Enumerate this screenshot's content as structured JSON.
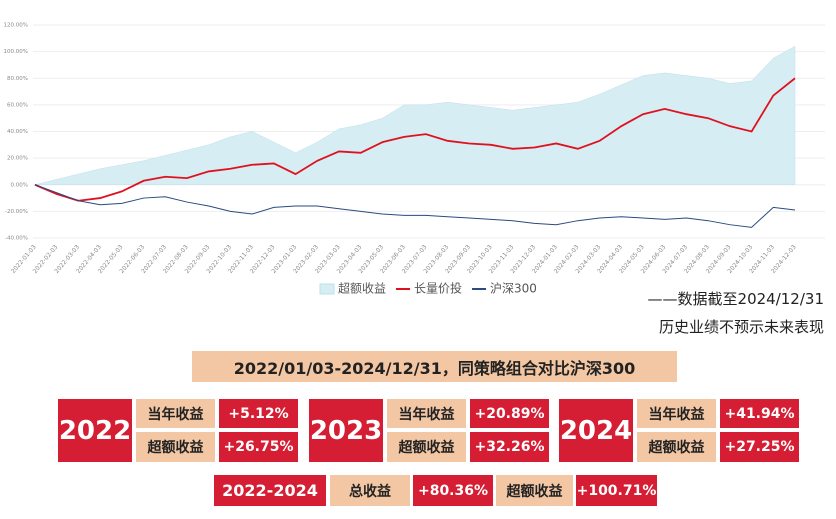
{
  "chart_data": {
    "type": "line",
    "categories": [
      "2022-01-03",
      "2022-02-03",
      "2022-03-03",
      "2022-04-03",
      "2022-05-03",
      "2022-06-03",
      "2022-07-03",
      "2022-08-03",
      "2022-09-03",
      "2022-10-03",
      "2022-11-03",
      "2022-12-03",
      "2023-01-03",
      "2023-02-03",
      "2023-03-03",
      "2023-04-03",
      "2023-05-03",
      "2023-06-03",
      "2023-07-03",
      "2023-08-03",
      "2023-09-03",
      "2023-10-03",
      "2023-11-03",
      "2023-12-03",
      "2024-01-03",
      "2024-02-03",
      "2024-03-03",
      "2024-04-03",
      "2024-05-03",
      "2024-06-03",
      "2024-07-03",
      "2024-08-03",
      "2024-09-03",
      "2024-10-03",
      "2024-11-03",
      "2024-12-03"
    ],
    "series": [
      {
        "name": "超额收益",
        "kind": "area",
        "color": "#d6edf4",
        "values": [
          0,
          4,
          8,
          12,
          15,
          18,
          22,
          26,
          30,
          36,
          40,
          32,
          24,
          32,
          42,
          45,
          50,
          60,
          60,
          62,
          60,
          58,
          56,
          58,
          60,
          62,
          68,
          75,
          82,
          84,
          82,
          80,
          76,
          78,
          95,
          104
        ]
      },
      {
        "name": "长量价投",
        "kind": "line",
        "color": "#e0111f",
        "values": [
          0,
          -7,
          -12,
          -10,
          -5,
          3,
          6,
          5,
          10,
          12,
          15,
          16,
          8,
          18,
          25,
          24,
          32,
          36,
          38,
          33,
          31,
          30,
          27,
          28,
          31,
          27,
          33,
          44,
          53,
          57,
          53,
          50,
          44,
          40,
          67,
          80
        ]
      },
      {
        "name": "沪深300",
        "kind": "line",
        "color": "#2b4a7e",
        "values": [
          0,
          -6,
          -12,
          -15,
          -14,
          -10,
          -9,
          -13,
          -16,
          -20,
          -22,
          -17,
          -16,
          -16,
          -18,
          -20,
          -22,
          -23,
          -23,
          -24,
          -25,
          -26,
          -27,
          -29,
          -30,
          -27,
          -25,
          -24,
          -25,
          -26,
          -25,
          -27,
          -30,
          -32,
          -17,
          -19
        ]
      }
    ],
    "ylim": [
      -40,
      120
    ],
    "yticks": [
      {
        "value": -40,
        "label": "-40.00%"
      },
      {
        "value": -20,
        "label": "-20.00%"
      },
      {
        "value": 0,
        "label": "0.00%"
      },
      {
        "value": 20,
        "label": "20.00%"
      },
      {
        "value": 40,
        "label": "40.00%"
      },
      {
        "value": 60,
        "label": "60.00%"
      },
      {
        "value": 80,
        "label": "80.00%"
      },
      {
        "value": 100,
        "label": "100.00%"
      },
      {
        "value": 120,
        "label": "120.00%"
      }
    ],
    "grid": true,
    "legend": "bottom"
  },
  "notes": [
    "——数据截至2024/12/31",
    "历史业绩不预示未来表现"
  ],
  "banner": "2022/01/03-2024/12/31，同策略组合对比沪深300",
  "years": [
    {
      "year": "2022",
      "label1": "当年收益",
      "value1": "+5.12%",
      "label2": "超额收益",
      "value2": "+26.75%"
    },
    {
      "year": "2023",
      "label1": "当年收益",
      "value1": "+20.89%",
      "label2": "超额收益",
      "value2": "+32.26%"
    },
    {
      "year": "2024",
      "label1": "当年收益",
      "value1": "+41.94%",
      "label2": "超额收益",
      "value2": "+27.25%"
    }
  ],
  "summary": {
    "period": "2022-2024",
    "label1": "总收益",
    "value1": "+80.36%",
    "label2": "超额收益",
    "value2": "+100.71%"
  }
}
